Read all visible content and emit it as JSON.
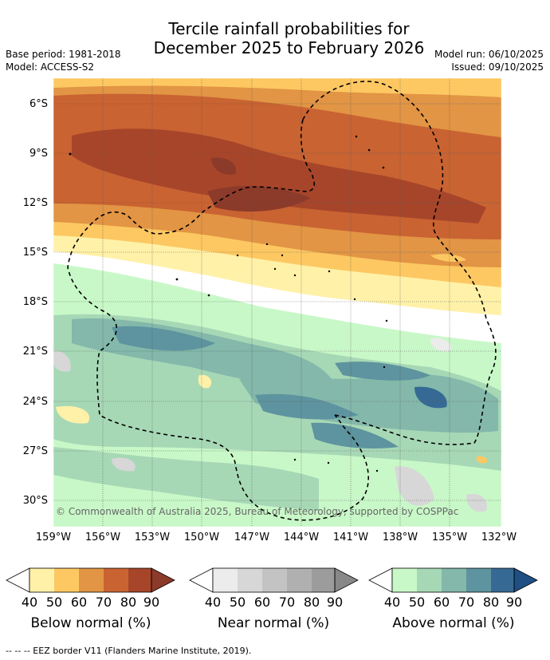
{
  "title": {
    "line1": "Tercile rainfall probabilities for",
    "line2": "December 2025 to February 2026"
  },
  "meta": {
    "base_period": "Base period: 1981-2018",
    "model": "Model: ACCESS-S2",
    "model_run": "Model run: 06/10/2025",
    "issued": "Issued: 09/10/2025"
  },
  "map": {
    "lat_labels": [
      "6°S",
      "9°S",
      "12°S",
      "15°S",
      "18°S",
      "21°S",
      "24°S",
      "27°S",
      "30°S"
    ],
    "lon_labels": [
      "159°W",
      "156°W",
      "153°W",
      "150°W",
      "147°W",
      "144°W",
      "141°W",
      "138°W",
      "135°W",
      "132°W"
    ],
    "copyright": "© Commonwealth of Australia 2025, Bureau of Meteorology, supported by COSPPac"
  },
  "colorbars": [
    {
      "label": "Below normal (%)",
      "ticks": [
        "40",
        "50",
        "60",
        "70",
        "80",
        "90"
      ],
      "colors": [
        "#fff1a8",
        "#fdc862",
        "#e29544",
        "#c96332",
        "#a7452a",
        "#8c3a2a"
      ]
    },
    {
      "label": "Near normal (%)",
      "ticks": [
        "40",
        "50",
        "60",
        "70",
        "80",
        "90"
      ],
      "colors": [
        "#ececec",
        "#d7d7d7",
        "#c3c3c3",
        "#b0b0b0",
        "#9c9c9c",
        "#888888"
      ]
    },
    {
      "label": "Above normal (%)",
      "ticks": [
        "40",
        "50",
        "60",
        "70",
        "80",
        "90"
      ],
      "colors": [
        "#c9f8c8",
        "#a7d8b6",
        "#83b8aa",
        "#5d949f",
        "#366a95",
        "#1f4f83"
      ]
    }
  ],
  "footnote": "--  --  -- EEZ border V11 (Flanders Marine Institute, 2019)."
}
